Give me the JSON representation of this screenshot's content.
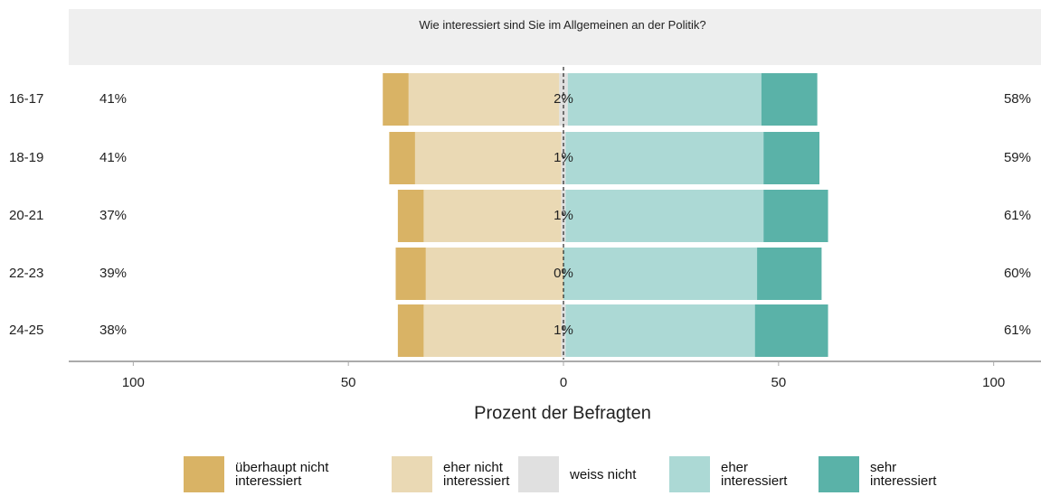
{
  "chart_data": {
    "type": "diverging_bar",
    "title": "Wie interessiert sind Sie im Allgemeinen an der Politik?",
    "x_label": "Prozent der Befragten",
    "categories": [
      "16-17",
      "18-19",
      "20-21",
      "22-23",
      "24-25"
    ],
    "series": [
      {
        "name": "überhaupt nicht interessiert",
        "color": "#d9b365",
        "side": "left",
        "values": [
          6,
          6,
          6,
          7,
          6
        ]
      },
      {
        "name": "eher nicht interessiert",
        "color": "#ead9b4",
        "side": "left",
        "values": [
          35,
          34,
          32,
          32,
          32
        ]
      },
      {
        "name": "weiss nicht",
        "color": "#e0e0e0",
        "side": "center",
        "values": [
          2,
          1,
          1,
          0,
          1
        ]
      },
      {
        "name": "eher interessiert",
        "color": "#acd9d5",
        "side": "right",
        "values": [
          45,
          46,
          46,
          45,
          44
        ]
      },
      {
        "name": "sehr interessiert",
        "color": "#5ab2a8",
        "side": "right",
        "values": [
          13,
          13,
          15,
          15,
          17
        ]
      }
    ],
    "left_labels": [
      "41%",
      "41%",
      "37%",
      "39%",
      "38%"
    ],
    "center_labels": [
      "2%",
      "1%",
      "1%",
      "0%",
      "1%"
    ],
    "right_labels": [
      "58%",
      "59%",
      "61%",
      "60%",
      "61%"
    ],
    "xlim": [
      -115,
      111
    ],
    "xticks": [
      {
        "value": -100,
        "label": "100"
      },
      {
        "value": -50,
        "label": "50"
      },
      0,
      50,
      100
    ],
    "zero_line": true,
    "legend": "bottom"
  }
}
